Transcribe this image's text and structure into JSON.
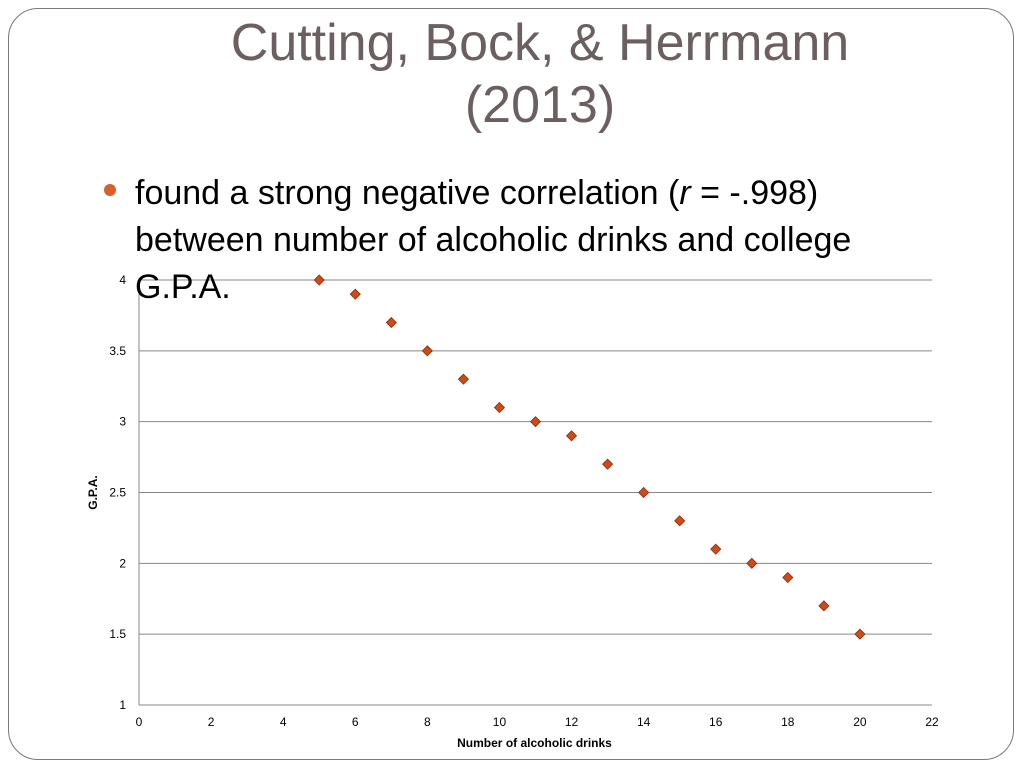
{
  "slide": {
    "title_line1": "Cutting, Bock, & Herrmann",
    "title_line2": "(2013)",
    "bullet_pre": "found a strong negative correlation (",
    "bullet_r": "r",
    "bullet_post": " = -.998) between number of alcoholic drinks and college G.P.A.",
    "bullet_color": "#d4622a"
  },
  "chart_data": {
    "type": "scatter",
    "xlabel": "Number of alcoholic drinks",
    "ylabel": "G.P.A.",
    "xlim": [
      0,
      22
    ],
    "ylim": [
      1,
      4
    ],
    "xticks": [
      0,
      2,
      4,
      6,
      8,
      10,
      12,
      14,
      16,
      18,
      20,
      22
    ],
    "yticks": [
      1,
      1.5,
      2,
      2.5,
      3,
      3.5,
      4
    ],
    "grid": "horizontal",
    "marker": "diamond",
    "marker_color": "#d04a18",
    "points": [
      {
        "x": 5,
        "y": 4.0
      },
      {
        "x": 6,
        "y": 3.9
      },
      {
        "x": 7,
        "y": 3.7
      },
      {
        "x": 8,
        "y": 3.5
      },
      {
        "x": 9,
        "y": 3.3
      },
      {
        "x": 10,
        "y": 3.1
      },
      {
        "x": 11,
        "y": 3.0
      },
      {
        "x": 12,
        "y": 2.9
      },
      {
        "x": 13,
        "y": 2.7
      },
      {
        "x": 14,
        "y": 2.5
      },
      {
        "x": 15,
        "y": 2.3
      },
      {
        "x": 16,
        "y": 2.1
      },
      {
        "x": 17,
        "y": 2.0
      },
      {
        "x": 18,
        "y": 1.9
      },
      {
        "x": 19,
        "y": 1.7
      },
      {
        "x": 20,
        "y": 1.5
      }
    ]
  }
}
